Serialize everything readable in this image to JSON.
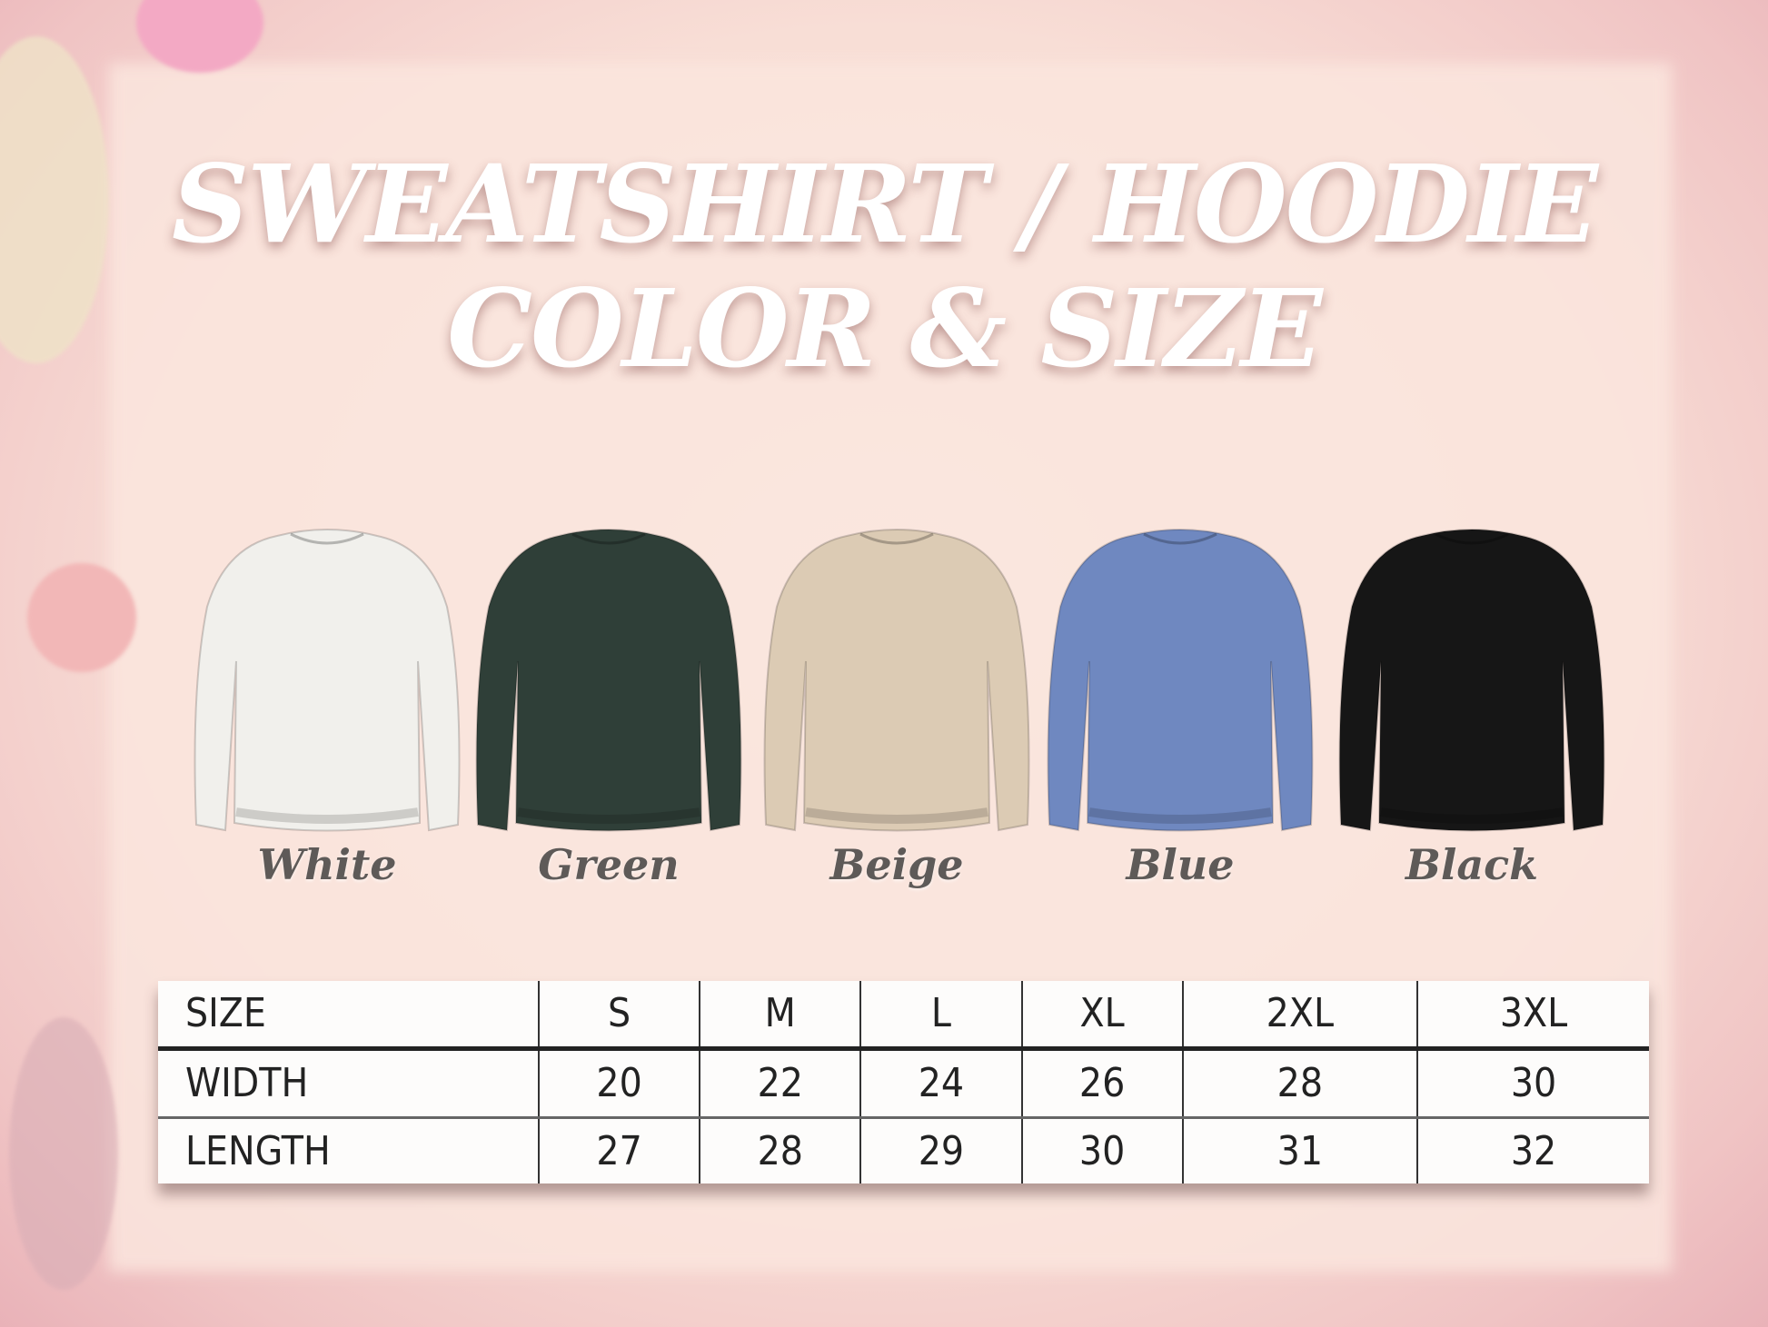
{
  "title": {
    "line1": "SWEATSHIRT / HOODIE",
    "line2": "COLOR & SIZE"
  },
  "colors": [
    {
      "label": "White",
      "hex": "#f1f0ec"
    },
    {
      "label": "Green",
      "hex": "#2f3f38"
    },
    {
      "label": "Beige",
      "hex": "#dccbb4"
    },
    {
      "label": "Blue",
      "hex": "#6f88c0"
    },
    {
      "label": "Black",
      "hex": "#161616"
    }
  ],
  "size_table": {
    "header": [
      "SIZE",
      "S",
      "M",
      "L",
      "XL",
      "2XL",
      "3XL"
    ],
    "rows": [
      [
        "WIDTH",
        "20",
        "22",
        "24",
        "26",
        "28",
        "30"
      ],
      [
        "LENGTH",
        "27",
        "28",
        "29",
        "30",
        "31",
        "32"
      ]
    ]
  }
}
